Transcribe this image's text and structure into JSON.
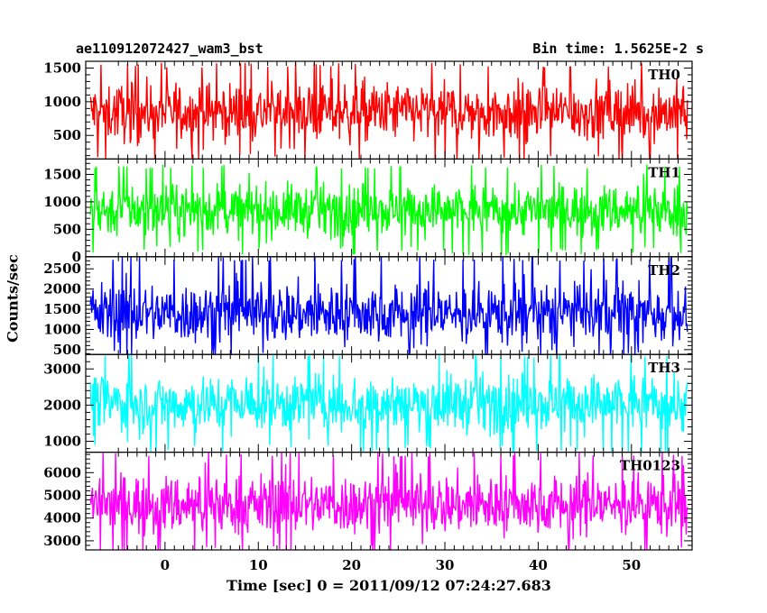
{
  "header": {
    "title": "ae110912072427_wam3_bst",
    "bin_time": "Bin time: 1.5625E-2 s"
  },
  "chart_data": {
    "type": "line",
    "title": "ae110912072427_wam3_bst",
    "subtitle": "Bin time: 1.5625E-2 s",
    "xlabel": "Time [sec] 0 = 2011/09/12 07:24:27.683",
    "ylabel": "Counts/sec",
    "xlim": [
      -8.5,
      56.5
    ],
    "x_ticks": [
      0,
      10,
      20,
      30,
      40,
      50
    ],
    "x_tick_labels": [
      "0",
      "10",
      "20",
      "30",
      "40",
      "50"
    ],
    "x_data_range": [
      -8,
      56
    ],
    "panels": [
      {
        "name": "TH0",
        "color": "#ff0000",
        "ylim": [
          150,
          1600
        ],
        "y_ticks": [
          500,
          1000,
          1500
        ],
        "y_tick_labels": [
          "500",
          "1000",
          "1500"
        ],
        "typical_range": [
          200,
          1500
        ],
        "mean": 850
      },
      {
        "name": "TH1",
        "color": "#00ff00",
        "ylim": [
          0,
          1780
        ],
        "y_ticks": [
          0,
          500,
          1000,
          1500
        ],
        "y_tick_labels": [
          "0",
          "500",
          "1000",
          "1500"
        ],
        "typical_range": [
          200,
          1600
        ],
        "mean": 850
      },
      {
        "name": "TH2",
        "color": "#0000ff",
        "ylim": [
          380,
          2800
        ],
        "y_ticks": [
          500,
          1000,
          1500,
          2000,
          2500
        ],
        "y_tick_labels": [
          "500",
          "1000",
          "1500",
          "2000",
          "2500"
        ],
        "typical_range": [
          500,
          2700
        ],
        "mean": 1400
      },
      {
        "name": "TH3",
        "color": "#00ffff",
        "ylim": [
          700,
          3400
        ],
        "y_ticks": [
          1000,
          2000,
          3000
        ],
        "y_tick_labels": [
          "1000",
          "2000",
          "3000"
        ],
        "typical_range": [
          900,
          3300
        ],
        "mean": 2050
      },
      {
        "name": "TH0123",
        "color": "#ff00ff",
        "ylim": [
          2600,
          6900
        ],
        "y_ticks": [
          3000,
          4000,
          5000,
          6000
        ],
        "y_tick_labels": [
          "3000",
          "4000",
          "5000",
          "6000"
        ],
        "typical_range": [
          2800,
          6700
        ],
        "mean": 4600
      }
    ],
    "grid": false,
    "legend": "panel labels at top-right"
  }
}
